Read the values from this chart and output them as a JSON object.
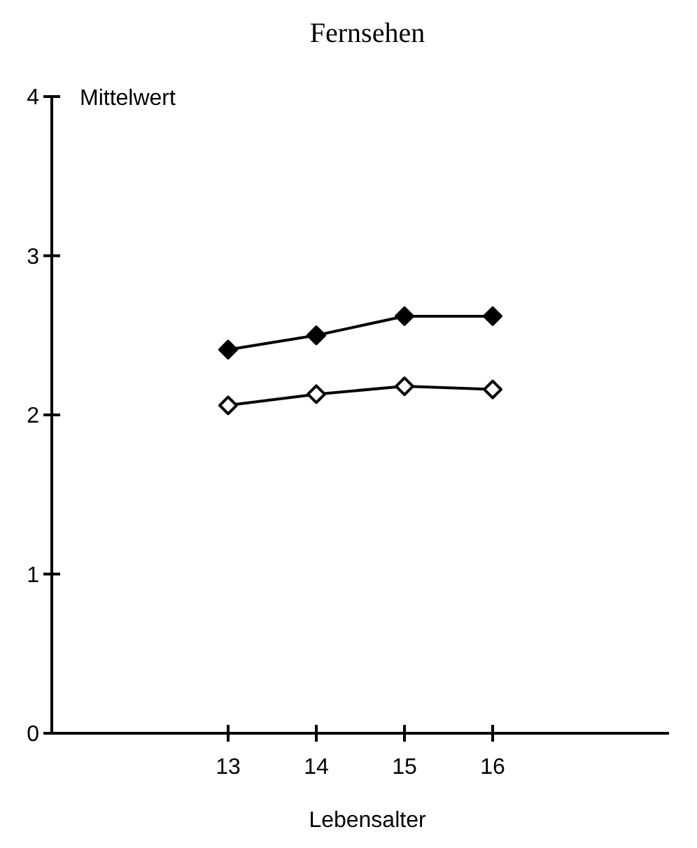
{
  "chart_data": {
    "type": "line",
    "title": "Fernsehen",
    "xlabel": "Lebensalter",
    "ylabel": "Mittelwert",
    "x": [
      13,
      14,
      15,
      16
    ],
    "series": [
      {
        "color": "#000000",
        "values": [
          2.41,
          2.5,
          2.62,
          2.62
        ]
      },
      {
        "color": "#000000",
        "values": [
          2.06,
          2.13,
          2.18,
          2.16
        ]
      }
    ],
    "xlim": [
      11,
      18
    ],
    "xticks": [
      13,
      14,
      15,
      16
    ],
    "ylim": [
      0,
      4
    ],
    "yticks": [
      0,
      1,
      2,
      3,
      4
    ],
    "grid": false,
    "marker": "diamond",
    "line_style": "solid"
  }
}
